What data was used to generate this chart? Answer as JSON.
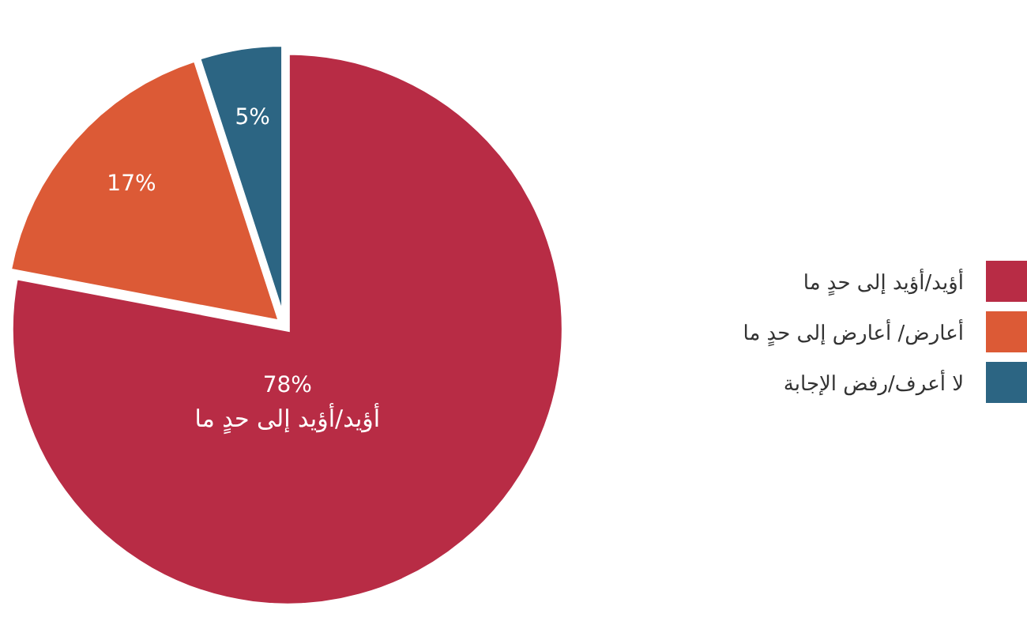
{
  "chart_data": {
    "type": "pie",
    "categories": [
      "أؤيد/أؤيد إلى حدٍ ما",
      "أعارض/ أعارض إلى حدٍ ما",
      "لا أعرف/رفض الإجابة"
    ],
    "values": [
      78,
      17,
      5
    ],
    "colors": [
      "#b82c45",
      "#dc5a36",
      "#2c6583"
    ],
    "value_labels": [
      "78%",
      "17%",
      "5%"
    ],
    "annotations": [
      "أؤيد/أؤيد إلى حدٍ ما"
    ],
    "legend": "right"
  }
}
